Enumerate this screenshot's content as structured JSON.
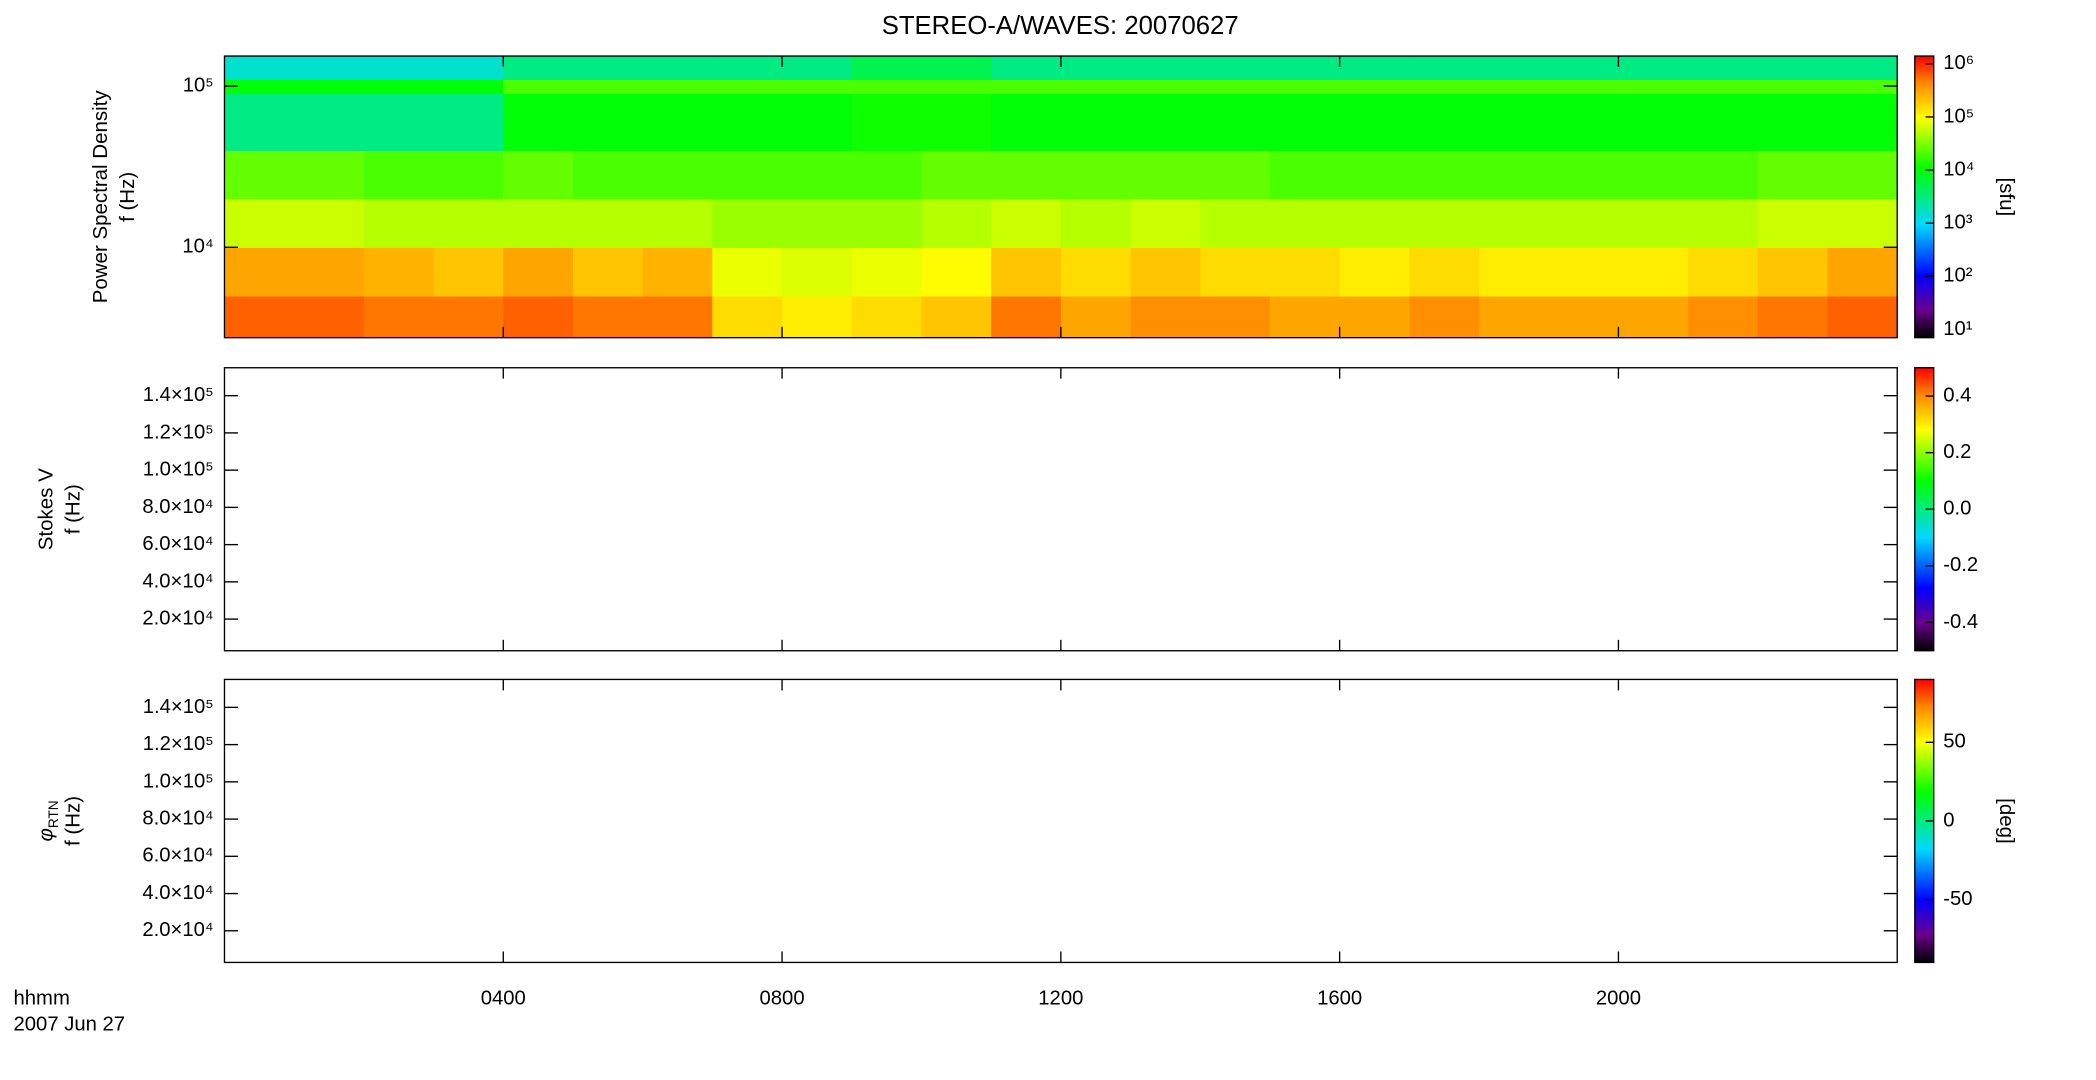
{
  "chart_data": [
    {
      "type": "heatmap",
      "title": "STEREO-A/WAVES: 20070627",
      "quantity": "Power Spectral Density",
      "ylabel": "f (Hz)",
      "xlim": [
        0,
        24
      ],
      "xticks": [
        4,
        8,
        12,
        16,
        20
      ],
      "ylog": true,
      "ylim": [
        2750,
        153500
      ],
      "yticks": [
        {
          "value": 10000,
          "label": "10⁴"
        },
        {
          "value": 100000,
          "label": "10⁵"
        }
      ],
      "zlog": true,
      "zlim": [
        7,
        1400000
      ],
      "zlabel": "[sfu]",
      "zticks": [
        {
          "value": 10,
          "label": "10¹"
        },
        {
          "value": 100,
          "label": "10²"
        },
        {
          "value": 1000,
          "label": "10³"
        },
        {
          "value": 10000,
          "label": "10⁴"
        },
        {
          "value": 100000,
          "label": "10⁵"
        },
        {
          "value": 1000000,
          "label": "10⁶"
        }
      ],
      "colormap": [
        [
          0,
          "#000000"
        ],
        [
          0.1,
          "#6a0090"
        ],
        [
          0.22,
          "#0000ff"
        ],
        [
          0.4,
          "#00d8ff"
        ],
        [
          0.6,
          "#00ff00"
        ],
        [
          0.78,
          "#ffff00"
        ],
        [
          0.9,
          "#ff8c00"
        ],
        [
          1,
          "#ff0000"
        ]
      ],
      "x_edges": [
        0,
        1,
        2,
        3,
        4,
        5,
        6,
        7,
        8,
        9,
        10,
        11,
        12,
        13,
        14,
        15,
        16,
        17,
        18,
        19,
        20,
        21,
        22,
        23,
        24
      ],
      "y_edges": [
        2750,
        5000,
        10000,
        20000,
        40000,
        90000,
        110000,
        153500
      ],
      "z": [
        [
          600000,
          600000,
          500000,
          500000,
          600000,
          500000,
          500000,
          150000,
          120000,
          150000,
          200000,
          500000,
          300000,
          400000,
          400000,
          300000,
          300000,
          400000,
          300000,
          300000,
          300000,
          400000,
          500000,
          600000
        ],
        [
          300000,
          300000,
          250000,
          200000,
          300000,
          200000,
          250000,
          80000,
          70000,
          80000,
          100000,
          200000,
          150000,
          200000,
          150000,
          150000,
          120000,
          150000,
          120000,
          120000,
          120000,
          150000,
          200000,
          300000
        ],
        [
          60000,
          60000,
          50000,
          50000,
          50000,
          50000,
          50000,
          40000,
          40000,
          40000,
          50000,
          60000,
          50000,
          60000,
          50000,
          50000,
          50000,
          50000,
          50000,
          50000,
          50000,
          50000,
          60000,
          60000
        ],
        [
          25000,
          25000,
          20000,
          20000,
          25000,
          20000,
          20000,
          20000,
          20000,
          20000,
          25000,
          25000,
          25000,
          25000,
          25000,
          20000,
          20000,
          20000,
          20000,
          20000,
          20000,
          20000,
          25000,
          25000
        ],
        [
          3000,
          3000,
          3000,
          3000,
          10000,
          10000,
          10000,
          10000,
          10000,
          12000,
          12000,
          10000,
          10000,
          10000,
          10000,
          10000,
          10000,
          10000,
          10000,
          10000,
          10000,
          10000,
          10000,
          10000
        ],
        [
          10000,
          10000,
          10000,
          10000,
          20000,
          20000,
          20000,
          20000,
          20000,
          20000,
          20000,
          20000,
          20000,
          20000,
          20000,
          20000,
          20000,
          20000,
          20000,
          20000,
          20000,
          20000,
          20000,
          20000
        ],
        [
          1500,
          1500,
          1500,
          1500,
          3000,
          3000,
          3000,
          3000,
          3000,
          5000,
          5000,
          3000,
          3000,
          3000,
          3000,
          3000,
          3000,
          3000,
          3000,
          3000,
          3000,
          3000,
          3000,
          3000
        ]
      ]
    },
    {
      "type": "heatmap",
      "quantity": "Stokes V",
      "ylabel": "f (Hz)",
      "xlim": [
        0,
        24
      ],
      "xticks": [
        4,
        8,
        12,
        16,
        20
      ],
      "ylog": false,
      "ylim": [
        3000,
        155000
      ],
      "yticks": [
        {
          "value": 20000,
          "label": "2.0×10⁴"
        },
        {
          "value": 40000,
          "label": "4.0×10⁴"
        },
        {
          "value": 60000,
          "label": "6.0×10⁴"
        },
        {
          "value": 80000,
          "label": "8.0×10⁴"
        },
        {
          "value": 100000,
          "label": "1.0×10⁵"
        },
        {
          "value": 120000,
          "label": "1.2×10⁵"
        },
        {
          "value": 140000,
          "label": "1.4×10⁵"
        }
      ],
      "zlog": false,
      "zlim": [
        -0.5,
        0.5
      ],
      "zticks": [
        -0.4,
        -0.2,
        {
          "value": 0,
          "label": "0.0"
        },
        0.2,
        0.4
      ]
    },
    {
      "type": "heatmap",
      "quantity": {
        "symbol": "φ",
        "subscript": "RTN"
      },
      "ylabel": "f (Hz)",
      "xlim": [
        0,
        24
      ],
      "xticks": [
        {
          "value": 4,
          "label": "0400"
        },
        {
          "value": 8,
          "label": "0800"
        },
        {
          "value": 12,
          "label": "1200"
        },
        {
          "value": 16,
          "label": "1600"
        },
        {
          "value": 20,
          "label": "2000"
        }
      ],
      "xlabel": "hhmm",
      "date": "2007 Jun 27",
      "ylog": false,
      "ylim": [
        3000,
        155000
      ],
      "yticks": [
        {
          "value": 20000,
          "label": "2.0×10⁴"
        },
        {
          "value": 40000,
          "label": "4.0×10⁴"
        },
        {
          "value": 60000,
          "label": "6.0×10⁴"
        },
        {
          "value": 80000,
          "label": "8.0×10⁴"
        },
        {
          "value": 100000,
          "label": "1.0×10⁵"
        },
        {
          "value": 120000,
          "label": "1.2×10⁵"
        },
        {
          "value": 140000,
          "label": "1.4×10⁵"
        }
      ],
      "zlog": false,
      "zlim": [
        -90,
        90
      ],
      "zlabel": "[deg]",
      "zticks": [
        -50,
        0,
        50
      ]
    }
  ]
}
